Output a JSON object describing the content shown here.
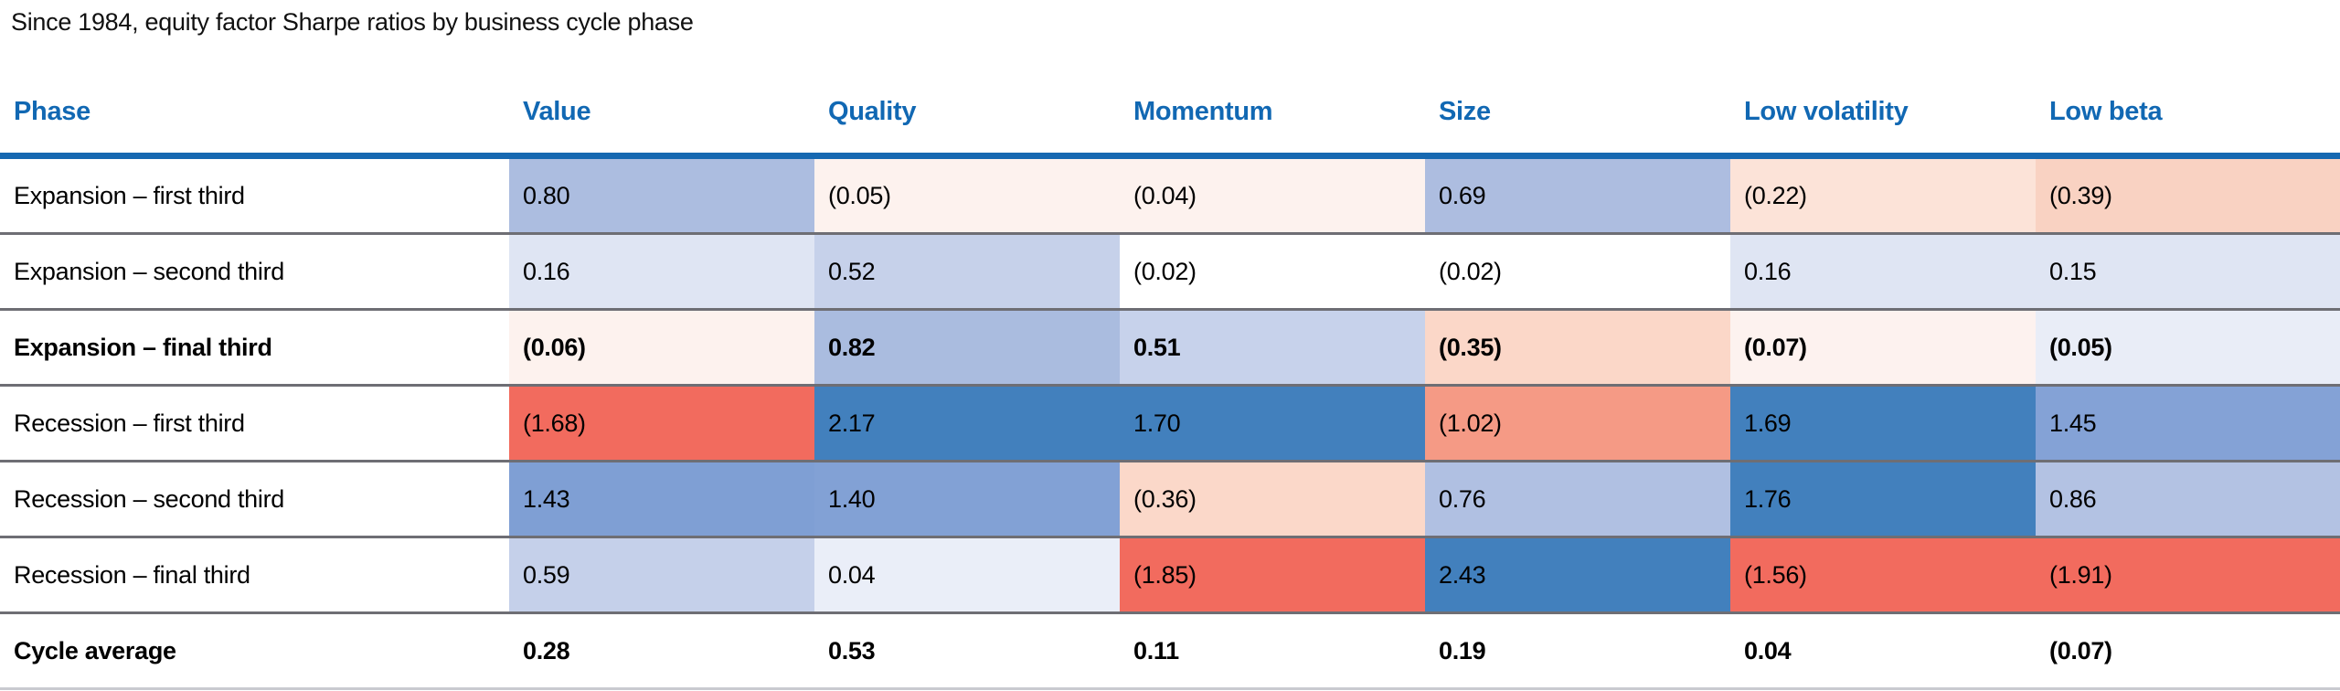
{
  "title": "Since 1984, equity factor Sharpe ratios by business cycle phase",
  "colors": {
    "header_text_blue": "#1168b3",
    "header_rule_blue": "#1668b1",
    "row_separator_gray": "#6e6e74",
    "bottom_rule_gray": "#c9cad0",
    "strong_positive_blue": "#4280bd",
    "strong_negative_red": "#f26b5e",
    "neutral_white": "#ffffff"
  },
  "table": {
    "columns": [
      "Phase",
      "Value",
      "Quality",
      "Momentum",
      "Size",
      "Low volatility",
      "Low beta"
    ],
    "rows": [
      {
        "phase": "Expansion – first third",
        "bold": false,
        "cells": [
          {
            "text": "0.80",
            "bg": "#acbde0"
          },
          {
            "text": "(0.05)",
            "bg": "#fdf2ee"
          },
          {
            "text": "(0.04)",
            "bg": "#fdf2ee"
          },
          {
            "text": "0.69",
            "bg": "#adbde0"
          },
          {
            "text": "(0.22)",
            "bg": "#fce3d8"
          },
          {
            "text": "(0.39)",
            "bg": "#f9d2c2"
          }
        ]
      },
      {
        "phase": "Expansion – second third",
        "bold": false,
        "cells": [
          {
            "text": "0.16",
            "bg": "#dfe5f3"
          },
          {
            "text": "0.52",
            "bg": "#c6d1ea"
          },
          {
            "text": "(0.02)",
            "bg": "#ffffff"
          },
          {
            "text": "(0.02)",
            "bg": "#ffffff"
          },
          {
            "text": "0.16",
            "bg": "#dfe5f3"
          },
          {
            "text": "0.15",
            "bg": "#dfe5f3"
          }
        ]
      },
      {
        "phase": "Expansion – final third",
        "bold": true,
        "cells": [
          {
            "text": "(0.06)",
            "bg": "#fdf2ee"
          },
          {
            "text": "0.82",
            "bg": "#aabcdf"
          },
          {
            "text": "0.51",
            "bg": "#c7d2eb"
          },
          {
            "text": "(0.35)",
            "bg": "#fbd7c8"
          },
          {
            "text": "(0.07)",
            "bg": "#fdf2ef"
          },
          {
            "text": "(0.05)",
            "bg": "#e9edf7"
          }
        ]
      },
      {
        "phase": "Recession – first third",
        "bold": false,
        "cells": [
          {
            "text": "(1.68)",
            "bg": "#f26b5e"
          },
          {
            "text": "2.17",
            "bg": "#4280bd"
          },
          {
            "text": "1.70",
            "bg": "#4280bd"
          },
          {
            "text": "(1.02)",
            "bg": "#f59a85"
          },
          {
            "text": "1.69",
            "bg": "#4280bd"
          },
          {
            "text": "1.45",
            "bg": "#84a2d6"
          }
        ]
      },
      {
        "phase": "Recession – second third",
        "bold": false,
        "cells": [
          {
            "text": "1.43",
            "bg": "#7f9fd4"
          },
          {
            "text": "1.40",
            "bg": "#82a1d5"
          },
          {
            "text": "(0.36)",
            "bg": "#fbd8c9"
          },
          {
            "text": "0.76",
            "bg": "#b0c0e2"
          },
          {
            "text": "1.76",
            "bg": "#4280bd"
          },
          {
            "text": "0.86",
            "bg": "#b3c2e3"
          }
        ]
      },
      {
        "phase": "Recession – final third",
        "bold": false,
        "cells": [
          {
            "text": "0.59",
            "bg": "#c5d0ea"
          },
          {
            "text": "0.04",
            "bg": "#eaeef8"
          },
          {
            "text": "(1.85)",
            "bg": "#f26b5e"
          },
          {
            "text": "2.43",
            "bg": "#4280bd"
          },
          {
            "text": "(1.56)",
            "bg": "#f26b5e"
          },
          {
            "text": "(1.91)",
            "bg": "#f26b5e"
          }
        ]
      },
      {
        "phase": "Cycle average",
        "bold": true,
        "cells": [
          {
            "text": "0.28",
            "bg": "#ffffff"
          },
          {
            "text": "0.53",
            "bg": "#ffffff"
          },
          {
            "text": "0.11",
            "bg": "#ffffff"
          },
          {
            "text": "0.19",
            "bg": "#ffffff"
          },
          {
            "text": "0.04",
            "bg": "#ffffff"
          },
          {
            "text": "(0.07)",
            "bg": "#ffffff"
          }
        ]
      }
    ]
  },
  "chart_data": {
    "type": "heatmap",
    "title": "Since 1984, equity factor Sharpe ratios by business cycle phase",
    "columns": [
      "Value",
      "Quality",
      "Momentum",
      "Size",
      "Low volatility",
      "Low beta"
    ],
    "rows": [
      "Expansion – first third",
      "Expansion – second third",
      "Expansion – final third",
      "Recession – first third",
      "Recession – second third",
      "Recession – final third",
      "Cycle average"
    ],
    "values": [
      [
        0.8,
        -0.05,
        -0.04,
        0.69,
        -0.22,
        -0.39
      ],
      [
        0.16,
        0.52,
        -0.02,
        -0.02,
        0.16,
        0.15
      ],
      [
        -0.06,
        0.82,
        0.51,
        -0.35,
        -0.07,
        -0.05
      ],
      [
        -1.68,
        2.17,
        1.7,
        -1.02,
        1.69,
        1.45
      ],
      [
        1.43,
        1.4,
        -0.36,
        0.76,
        1.76,
        0.86
      ],
      [
        0.59,
        0.04,
        -1.85,
        2.43,
        -1.56,
        -1.91
      ],
      [
        0.28,
        0.53,
        0.11,
        0.19,
        0.04,
        -0.07
      ]
    ],
    "value_format": "negatives shown in parentheses",
    "colormap": "diverging: red (negative) → white (≈0) → blue (positive), saturating near |1.5|",
    "legend": "none",
    "notes": "Cycle average row has no heat shading (white background)"
  }
}
